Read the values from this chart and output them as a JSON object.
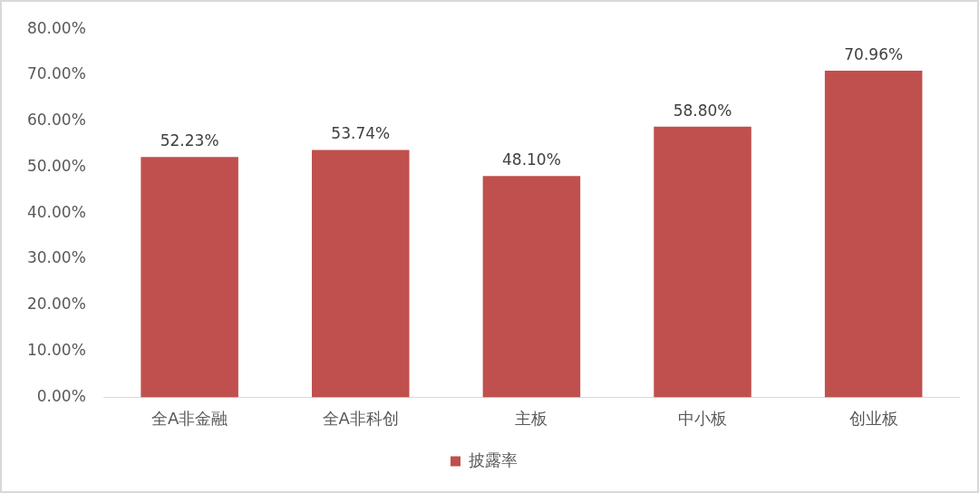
{
  "chart_data": {
    "type": "bar",
    "categories": [
      "全A非金融",
      "全A非科创",
      "主板",
      "中小板",
      "创业板"
    ],
    "series": [
      {
        "name": "披露率",
        "color": "#c0504d",
        "values": [
          52.23,
          53.74,
          48.1,
          58.8,
          70.96
        ],
        "value_labels": [
          "52.23%",
          "53.74%",
          "48.10%",
          "58.80%",
          "70.96%"
        ]
      }
    ],
    "ylim": [
      0,
      80
    ],
    "yticks": [
      {
        "value": 0,
        "label": "0.00%"
      },
      {
        "value": 10,
        "label": "10.00%"
      },
      {
        "value": 20,
        "label": "20.00%"
      },
      {
        "value": 30,
        "label": "30.00%"
      },
      {
        "value": 40,
        "label": "40.00%"
      },
      {
        "value": 50,
        "label": "50.00%"
      },
      {
        "value": 60,
        "label": "60.00%"
      },
      {
        "value": 70,
        "label": "70.00%"
      },
      {
        "value": 80,
        "label": "80.00%"
      }
    ],
    "legend": "bottom"
  }
}
